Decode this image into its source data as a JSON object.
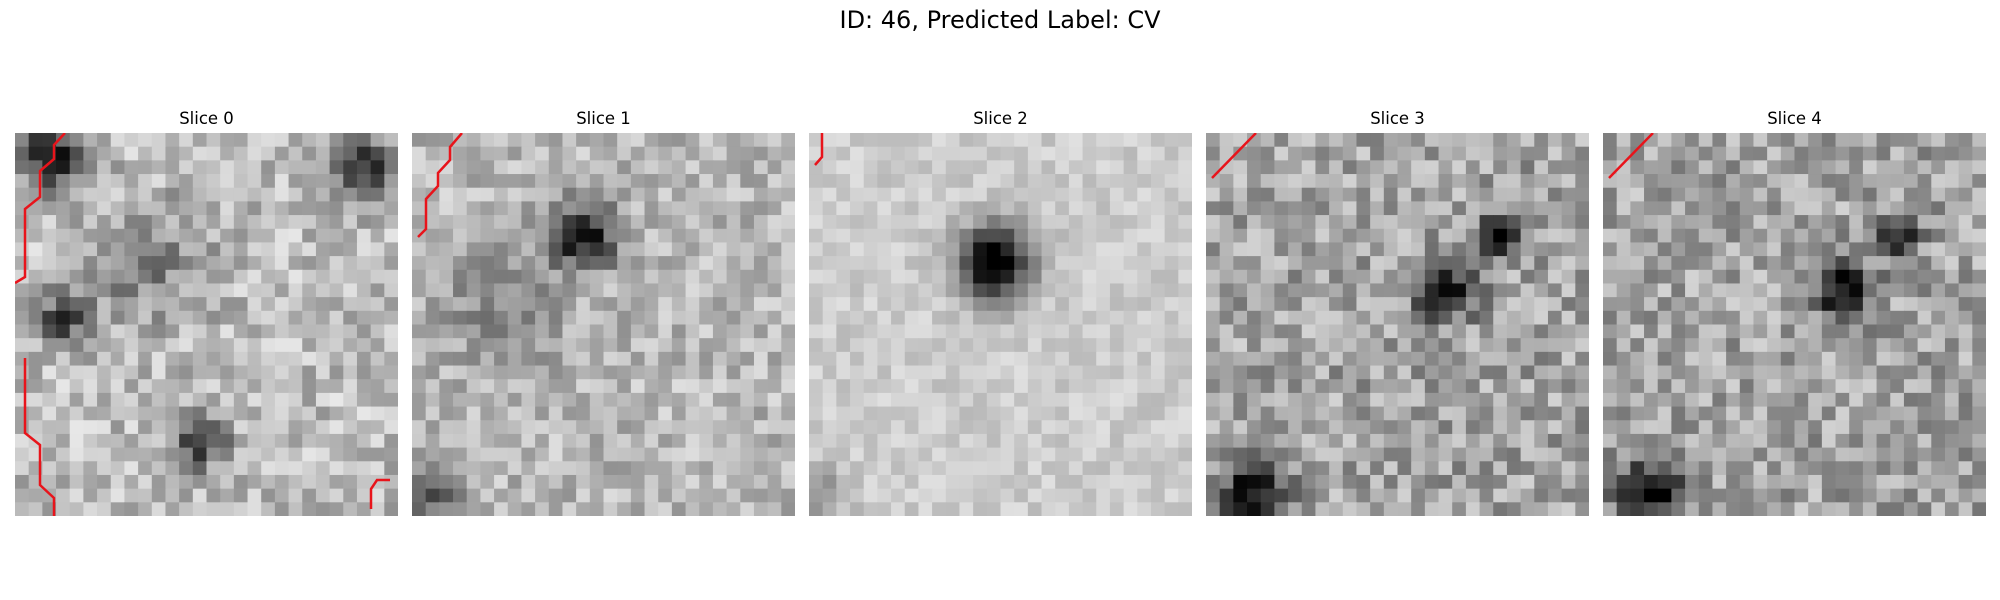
{
  "figure": {
    "title": "ID: 46, Predicted Label: CV"
  },
  "panels": [
    {
      "title": "Slice 0"
    },
    {
      "title": "Slice 1"
    },
    {
      "title": "Slice 2"
    },
    {
      "title": "Slice 3"
    },
    {
      "title": "Slice 4"
    }
  ],
  "colors": {
    "contour": "#e8141b",
    "colormap": "gray"
  }
}
